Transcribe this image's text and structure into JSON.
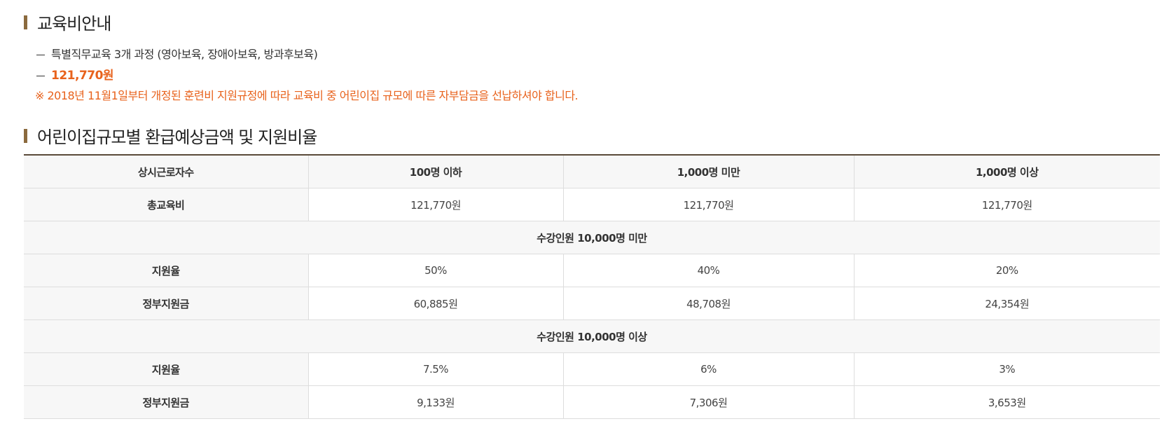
{
  "section1": {
    "title": "교육비안내",
    "course_line": "특별직무교육 3개 과정 (영아보육, 장애아보육, 방과후보육)",
    "price": "121,770원",
    "note": "※ 2018년 11월1일부터 개정된 훈련비 지원규정에 따라 교육비 중 어린이집 규모에 따른 자부담금을 선납하셔야 합니다."
  },
  "section2": {
    "title": "어린이집규모별 환급예상금액 및 지원비율"
  },
  "table": {
    "header": [
      "상시근로자수",
      "100명 이하",
      "1,000명 미만",
      "1,000명 이상"
    ],
    "total_row": {
      "label": "총교육비",
      "values": [
        "121,770원",
        "121,770원",
        "121,770원"
      ]
    },
    "groups": [
      {
        "title": "수강인원 10,000명 미만",
        "rate_row": {
          "label": "지원율",
          "values": [
            "50%",
            "40%",
            "20%"
          ]
        },
        "amount_row": {
          "label": "정부지원금",
          "values": [
            "60,885원",
            "48,708원",
            "24,354원"
          ]
        }
      },
      {
        "title": "수강인원 10,000명 이상",
        "rate_row": {
          "label": "지원율",
          "values": [
            "7.5%",
            "6%",
            "3%"
          ]
        },
        "amount_row": {
          "label": "정부지원금",
          "values": [
            "9,133원",
            "7,306원",
            "3,653원"
          ]
        }
      }
    ]
  },
  "colors": {
    "accent": "#e8621c",
    "title_bar": "#8b6a3e",
    "table_top_border": "#5a4a3a",
    "header_bg": "#f7f7f7"
  }
}
